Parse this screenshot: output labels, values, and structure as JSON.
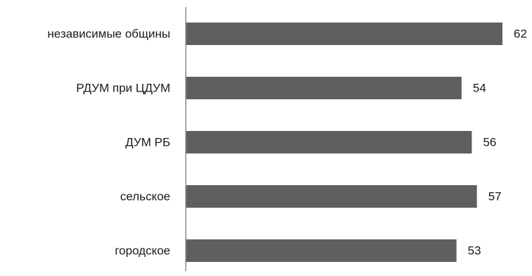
{
  "chart_data": {
    "type": "bar",
    "orientation": "horizontal",
    "categories": [
      "независимые общины",
      "РДУМ при ЦДУМ",
      "ДУМ РБ",
      "сельское",
      "городское"
    ],
    "values": [
      62,
      54,
      56,
      57,
      53
    ],
    "title": "",
    "xlabel": "",
    "ylabel": "",
    "xlim": [
      0,
      62
    ],
    "grid": false,
    "legend": "none",
    "bar_color": "#5f5f5f",
    "axis_color": "#8c8c8c"
  }
}
